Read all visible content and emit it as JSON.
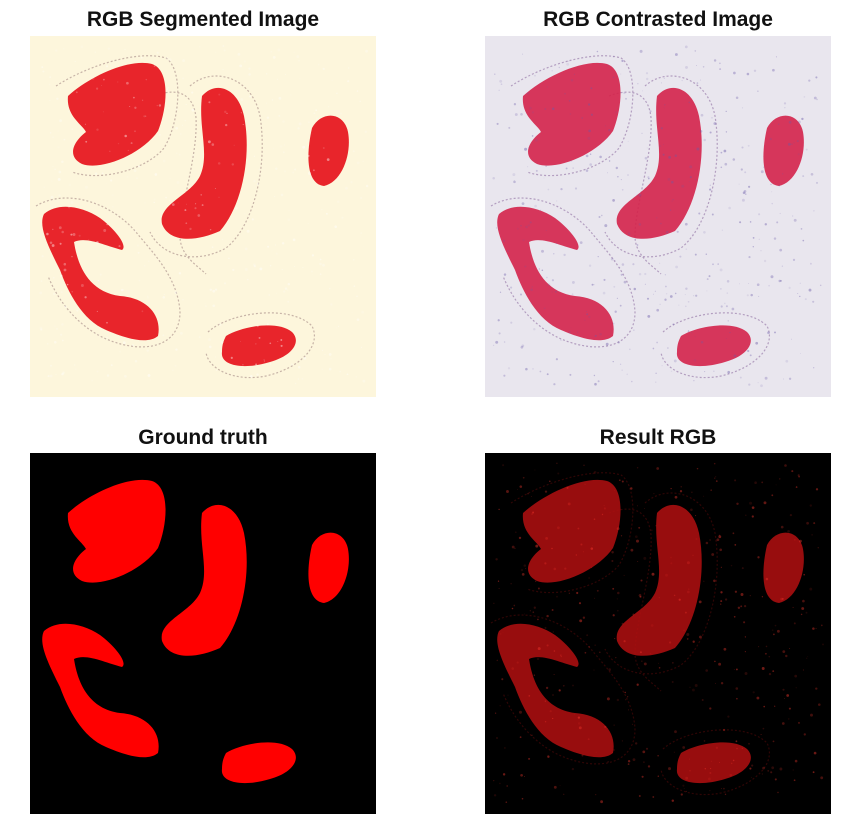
{
  "figure": {
    "panels": [
      {
        "id": "rgb-segmented",
        "title": "RGB Segmented Image",
        "background": "#fdf6dc",
        "tissue_color": "#e8252b",
        "outline_color": "#b9a39a"
      },
      {
        "id": "rgb-contrasted",
        "title": "RGB Contrasted Image",
        "background": "#e9e6ee",
        "tissue_color": "#d4224a",
        "outline_color": "#a58cb4"
      },
      {
        "id": "ground-truth",
        "title": "Ground truth",
        "background": "#000000",
        "tissue_color": "#ff0000",
        "outline_color": "#000000"
      },
      {
        "id": "result-rgb",
        "title": "Result RGB",
        "background": "#000000",
        "tissue_color": "#b30f10",
        "outline_color": "#3a0606"
      }
    ]
  }
}
